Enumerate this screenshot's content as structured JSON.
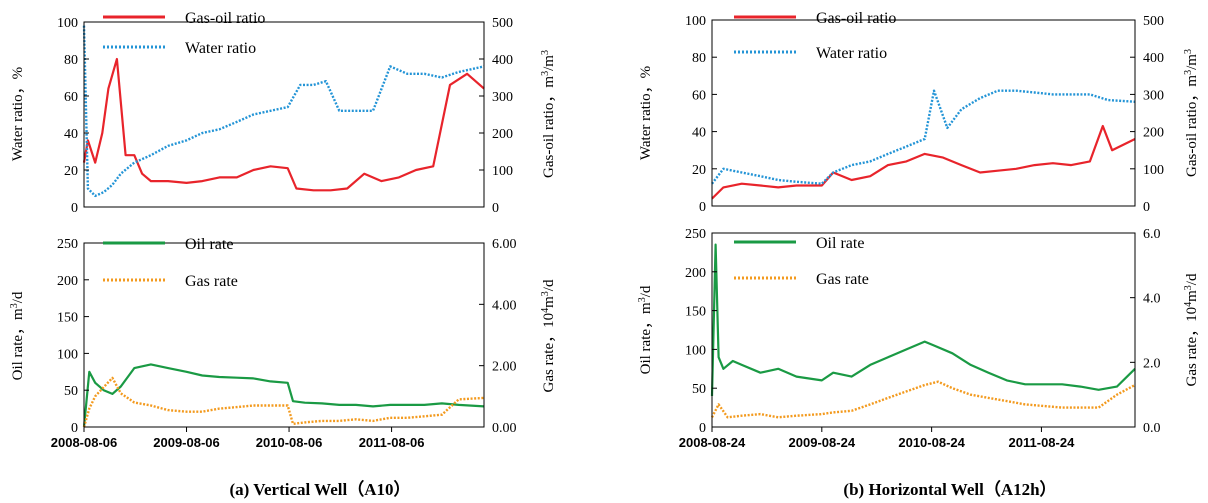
{
  "figure": {
    "left_caption": "(a) Vertical Well（A10）",
    "right_caption": "(b) Horizontal Well（A12h）"
  },
  "colors": {
    "gas_oil_ratio": "#e8242b",
    "water_ratio": "#2394d6",
    "oil_rate": "#1a9a44",
    "gas_rate": "#f39a1e"
  },
  "chart_data": [
    {
      "id": "a-top",
      "type": "line",
      "xlim": [
        "2008-08-06",
        "2012-06-30"
      ],
      "ylabel": "Water ratio，%",
      "ylim": [
        0,
        100
      ],
      "yticks": [
        "0",
        "20",
        "40",
        "60",
        "80",
        "100"
      ],
      "y2label": "Gas-oil ratio，m3/m3",
      "y2lim": [
        0,
        500
      ],
      "y2ticks": [
        "0",
        "100",
        "200",
        "300",
        "400",
        "500"
      ],
      "legend_placement": "top-left",
      "series": [
        {
          "name": "Gas-oil ratio",
          "axis": "right",
          "style": "solid",
          "color": "#e8242b",
          "x": [
            "2008-08-06",
            "2008-08-20",
            "2008-09-15",
            "2008-10-10",
            "2008-11-01",
            "2008-12-01",
            "2009-01-01",
            "2009-02-01",
            "2009-03-01",
            "2009-04-01",
            "2009-06-01",
            "2009-08-06",
            "2009-10-01",
            "2009-12-01",
            "2010-02-01",
            "2010-04-01",
            "2010-06-01",
            "2010-08-01",
            "2010-09-01",
            "2010-11-01",
            "2011-01-01",
            "2011-03-01",
            "2011-05-01",
            "2011-07-01",
            "2011-09-01",
            "2011-11-01",
            "2012-01-01",
            "2012-03-01",
            "2012-05-01",
            "2012-06-30"
          ],
          "values": [
            120,
            180,
            120,
            200,
            320,
            400,
            140,
            140,
            90,
            70,
            70,
            65,
            70,
            80,
            80,
            100,
            110,
            105,
            50,
            45,
            45,
            50,
            90,
            70,
            80,
            100,
            110,
            330,
            360,
            320
          ]
        },
        {
          "name": "Water ratio",
          "axis": "left",
          "style": "dotted",
          "color": "#2394d6",
          "x": [
            "2008-08-06",
            "2008-08-20",
            "2008-09-15",
            "2008-10-15",
            "2008-11-15",
            "2008-12-15",
            "2009-02-01",
            "2009-04-01",
            "2009-06-01",
            "2009-08-06",
            "2009-10-01",
            "2009-12-01",
            "2010-02-01",
            "2010-04-01",
            "2010-06-01",
            "2010-08-01",
            "2010-09-15",
            "2010-11-01",
            "2010-12-15",
            "2011-02-01",
            "2011-04-01",
            "2011-06-01",
            "2011-08-01",
            "2011-10-01",
            "2011-12-01",
            "2012-02-01",
            "2012-04-01",
            "2012-06-30"
          ],
          "values": [
            98,
            10,
            6,
            8,
            12,
            18,
            24,
            28,
            33,
            36,
            40,
            42,
            46,
            50,
            52,
            54,
            66,
            66,
            68,
            52,
            52,
            52,
            76,
            72,
            72,
            70,
            73,
            76
          ]
        }
      ]
    },
    {
      "id": "a-bottom",
      "type": "line",
      "xlim": [
        "2008-08-06",
        "2012-06-30"
      ],
      "xticks": [
        "2008-08-06",
        "2009-08-06",
        "2010-08-06",
        "2011-08-06"
      ],
      "ylabel": "Oil rate，m3/d",
      "ylim": [
        0,
        250
      ],
      "yticks": [
        "0",
        "50",
        "100",
        "150",
        "200",
        "250"
      ],
      "y2label": "Gas rate，104m3/d",
      "y2lim": [
        0,
        6
      ],
      "y2ticks": [
        "0.00",
        "2.00",
        "4.00",
        "6.00"
      ],
      "legend_placement": "top-left",
      "series": [
        {
          "name": "Oil rate",
          "axis": "left",
          "style": "solid",
          "color": "#1a9a44",
          "x": [
            "2008-08-06",
            "2008-08-25",
            "2008-09-15",
            "2008-10-15",
            "2008-11-15",
            "2008-12-15",
            "2009-02-01",
            "2009-04-01",
            "2009-06-01",
            "2009-08-06",
            "2009-10-01",
            "2009-12-01",
            "2010-02-01",
            "2010-04-01",
            "2010-06-01",
            "2010-08-01",
            "2010-08-20",
            "2010-10-01",
            "2010-12-01",
            "2011-02-01",
            "2011-04-01",
            "2011-06-01",
            "2011-08-01",
            "2011-10-01",
            "2011-12-01",
            "2012-02-01",
            "2012-04-01",
            "2012-06-30"
          ],
          "values": [
            0,
            75,
            60,
            50,
            45,
            55,
            80,
            85,
            80,
            75,
            70,
            68,
            67,
            66,
            62,
            60,
            35,
            33,
            32,
            30,
            30,
            28,
            30,
            30,
            30,
            32,
            30,
            28
          ]
        },
        {
          "name": "Gas rate",
          "axis": "right",
          "style": "dotted",
          "color": "#f39a1e",
          "x": [
            "2008-08-06",
            "2008-08-25",
            "2008-09-15",
            "2008-10-15",
            "2008-11-15",
            "2008-12-15",
            "2009-02-01",
            "2009-04-01",
            "2009-06-01",
            "2009-08-06",
            "2009-10-01",
            "2009-12-01",
            "2010-02-01",
            "2010-04-01",
            "2010-06-01",
            "2010-08-01",
            "2010-08-20",
            "2010-10-01",
            "2010-12-01",
            "2011-02-01",
            "2011-04-01",
            "2011-06-01",
            "2011-08-01",
            "2011-10-01",
            "2011-12-01",
            "2012-02-01",
            "2012-04-01",
            "2012-06-30"
          ],
          "values": [
            0,
            0.6,
            1.0,
            1.3,
            1.6,
            1.1,
            0.8,
            0.7,
            0.55,
            0.5,
            0.5,
            0.6,
            0.65,
            0.7,
            0.7,
            0.7,
            0.1,
            0.15,
            0.2,
            0.2,
            0.25,
            0.2,
            0.3,
            0.3,
            0.35,
            0.4,
            0.9,
            0.95
          ]
        }
      ]
    },
    {
      "id": "b-top",
      "type": "line",
      "xlim": [
        "2008-08-24",
        "2012-06-30"
      ],
      "ylabel": "Water ratio，%",
      "ylim": [
        0,
        100
      ],
      "yticks": [
        "0",
        "20",
        "40",
        "60",
        "80",
        "100"
      ],
      "y2label": "Gas-oil ratio，m3/m3",
      "y2lim": [
        0,
        500
      ],
      "y2ticks": [
        "0",
        "100",
        "200",
        "300",
        "400",
        "500"
      ],
      "legend_placement": "top-left",
      "series": [
        {
          "name": "Gas-oil ratio",
          "axis": "right",
          "style": "solid",
          "color": "#e8242b",
          "x": [
            "2008-08-24",
            "2008-10-01",
            "2008-12-01",
            "2009-02-01",
            "2009-04-01",
            "2009-06-01",
            "2009-08-24",
            "2009-10-01",
            "2009-12-01",
            "2010-02-01",
            "2010-04-01",
            "2010-06-01",
            "2010-08-01",
            "2010-10-01",
            "2010-12-01",
            "2011-02-01",
            "2011-04-01",
            "2011-06-01",
            "2011-08-01",
            "2011-10-01",
            "2011-12-01",
            "2012-02-01",
            "2012-03-15",
            "2012-04-15",
            "2012-06-30"
          ],
          "values": [
            20,
            50,
            60,
            55,
            50,
            55,
            55,
            90,
            70,
            80,
            110,
            120,
            140,
            130,
            110,
            90,
            95,
            100,
            110,
            115,
            110,
            120,
            215,
            150,
            180
          ]
        },
        {
          "name": "Water ratio",
          "axis": "left",
          "style": "dotted",
          "color": "#2394d6",
          "x": [
            "2008-08-24",
            "2008-10-01",
            "2008-12-01",
            "2009-02-01",
            "2009-04-01",
            "2009-06-01",
            "2009-08-24",
            "2009-10-01",
            "2009-12-01",
            "2010-02-01",
            "2010-04-01",
            "2010-06-01",
            "2010-08-01",
            "2010-09-01",
            "2010-10-15",
            "2010-12-01",
            "2011-02-01",
            "2011-04-01",
            "2011-06-01",
            "2011-08-01",
            "2011-10-01",
            "2011-12-01",
            "2012-02-01",
            "2012-04-01",
            "2012-06-30"
          ],
          "values": [
            12,
            20,
            18,
            16,
            14,
            13,
            12,
            18,
            22,
            24,
            28,
            32,
            36,
            62,
            42,
            52,
            58,
            62,
            62,
            61,
            60,
            60,
            60,
            57,
            56
          ]
        }
      ]
    },
    {
      "id": "b-bottom",
      "type": "line",
      "xlim": [
        "2008-08-24",
        "2012-06-30"
      ],
      "xticks": [
        "2008-08-24",
        "2009-08-24",
        "2010-08-24",
        "2011-08-24"
      ],
      "ylabel": "Oil rate，m3/d",
      "ylim": [
        0,
        250
      ],
      "yticks": [
        "0",
        "50",
        "100",
        "150",
        "200",
        "250"
      ],
      "y2label": "Gas rate，104m3/d",
      "y2lim": [
        0,
        6
      ],
      "y2ticks": [
        "0.0",
        "2.0",
        "4.0",
        "6.0"
      ],
      "legend_placement": "top-left",
      "series": [
        {
          "name": "Oil rate",
          "axis": "left",
          "style": "solid",
          "color": "#1a9a44",
          "x": [
            "2008-08-24",
            "2008-09-05",
            "2008-09-15",
            "2008-10-01",
            "2008-11-01",
            "2008-12-01",
            "2009-02-01",
            "2009-04-01",
            "2009-06-01",
            "2009-08-24",
            "2009-10-01",
            "2009-12-01",
            "2010-02-01",
            "2010-04-01",
            "2010-06-01",
            "2010-08-01",
            "2010-09-01",
            "2010-11-01",
            "2011-01-01",
            "2011-03-01",
            "2011-05-01",
            "2011-07-01",
            "2011-09-01",
            "2011-11-01",
            "2012-01-01",
            "2012-03-01",
            "2012-05-01",
            "2012-06-30"
          ],
          "values": [
            40,
            235,
            90,
            75,
            85,
            80,
            70,
            75,
            65,
            60,
            70,
            65,
            80,
            90,
            100,
            110,
            105,
            95,
            80,
            70,
            60,
            55,
            55,
            55,
            52,
            48,
            52,
            75
          ]
        },
        {
          "name": "Gas rate",
          "axis": "right",
          "style": "dotted",
          "color": "#f39a1e",
          "x": [
            "2008-08-24",
            "2008-09-15",
            "2008-10-15",
            "2008-12-01",
            "2009-02-01",
            "2009-04-01",
            "2009-06-01",
            "2009-08-24",
            "2009-10-01",
            "2009-12-01",
            "2010-02-01",
            "2010-04-01",
            "2010-06-01",
            "2010-08-01",
            "2010-09-15",
            "2010-11-01",
            "2011-01-01",
            "2011-03-01",
            "2011-05-01",
            "2011-07-01",
            "2011-09-01",
            "2011-11-01",
            "2012-01-01",
            "2012-03-01",
            "2012-05-01",
            "2012-06-30"
          ],
          "values": [
            0.3,
            0.7,
            0.3,
            0.35,
            0.4,
            0.3,
            0.35,
            0.4,
            0.45,
            0.5,
            0.7,
            0.9,
            1.1,
            1.3,
            1.4,
            1.2,
            1.0,
            0.9,
            0.8,
            0.7,
            0.65,
            0.6,
            0.6,
            0.6,
            1.0,
            1.3
          ]
        }
      ]
    }
  ]
}
